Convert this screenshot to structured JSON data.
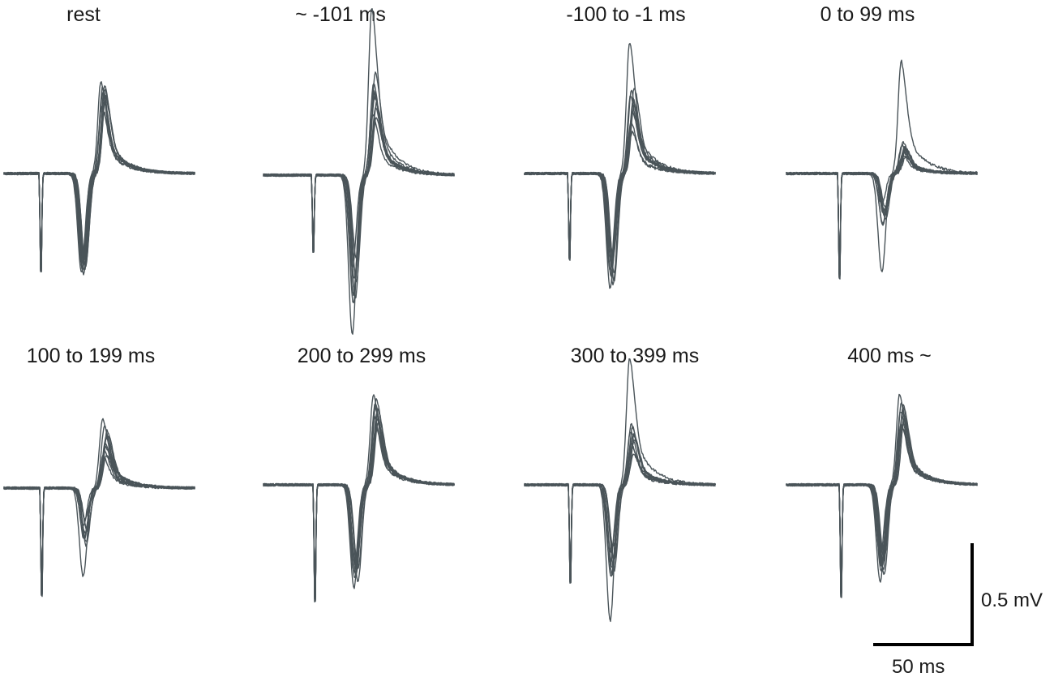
{
  "chart_data": {
    "type": "line",
    "description_units": {
      "x": "ms",
      "y": "mV"
    },
    "trace_color": "#4a5459",
    "scale_bars": {
      "voltage_label": "0.5 mV",
      "voltage_value_mV": 0.5,
      "time_label": "50 ms",
      "time_value_ms": 50
    },
    "panels": [
      {
        "title": "rest",
        "traces": 10,
        "stim_amp_mV": -0.55,
        "response": {
          "neg_peak_mV": [
            -0.44,
            -0.47,
            -0.49,
            -0.42,
            -0.45,
            -0.48,
            -0.46,
            -0.43,
            -0.47,
            -0.45
          ],
          "pos_peak_mV": [
            0.45,
            0.4,
            0.43,
            0.35,
            0.38,
            0.42,
            0.33,
            0.3,
            0.37,
            0.41
          ]
        }
      },
      {
        "title": "~  -101 ms",
        "traces": 10,
        "stim_amp_mV": -0.43,
        "response": {
          "neg_peak_mV": [
            -0.77,
            -0.62,
            -0.55,
            -0.48,
            -0.52,
            -0.45,
            -0.58,
            -0.5,
            -0.6,
            -0.4
          ],
          "pos_peak_mV": [
            0.82,
            0.45,
            0.5,
            0.38,
            0.35,
            0.42,
            0.3,
            0.4,
            0.28,
            0.33
          ]
        }
      },
      {
        "title": "-100  to  -1 ms",
        "traces": 10,
        "stim_amp_mV": -0.48,
        "response": {
          "neg_peak_mV": [
            -0.56,
            -0.5,
            -0.45,
            -0.4,
            -0.52,
            -0.47,
            -0.43,
            -0.38,
            -0.54,
            -0.48
          ],
          "pos_peak_mV": [
            0.64,
            0.4,
            0.35,
            0.3,
            0.42,
            0.25,
            0.38,
            0.2,
            0.33,
            0.36
          ]
        }
      },
      {
        "title": "0  to  99 ms",
        "traces": 10,
        "stim_amp_mV": -0.58,
        "response": {
          "neg_peak_mV": [
            -0.48,
            -0.25,
            -0.2,
            -0.18,
            -0.22,
            -0.15,
            -0.24,
            -0.19,
            -0.21,
            -0.17
          ],
          "pos_peak_mV": [
            0.55,
            0.15,
            0.13,
            0.1,
            0.12,
            0.09,
            0.14,
            0.11,
            0.08,
            0.12
          ]
        }
      },
      {
        "title": "100  to  199 ms",
        "traces": 10,
        "stim_amp_mV": -0.6,
        "response": {
          "neg_peak_mV": [
            -0.43,
            -0.25,
            -0.22,
            -0.28,
            -0.2,
            -0.18,
            -0.24,
            -0.15,
            -0.26,
            -0.21
          ],
          "pos_peak_mV": [
            0.34,
            0.3,
            0.25,
            0.2,
            0.28,
            0.18,
            0.15,
            0.22,
            0.26,
            0.16
          ]
        }
      },
      {
        "title": "200  to  299 ms",
        "traces": 10,
        "stim_amp_mV": -0.65,
        "response": {
          "neg_peak_mV": [
            -0.5,
            -0.45,
            -0.4,
            -0.35,
            -0.47,
            -0.42,
            -0.38,
            -0.44,
            -0.36,
            -0.41
          ],
          "pos_peak_mV": [
            0.44,
            0.4,
            0.35,
            0.42,
            0.3,
            0.38,
            0.33,
            0.28,
            0.37,
            0.32
          ]
        }
      },
      {
        "title": "300  to  399 ms",
        "traces": 10,
        "stim_amp_mV": -0.55,
        "response": {
          "neg_peak_mV": [
            -0.66,
            -0.45,
            -0.4,
            -0.35,
            -0.42,
            -0.38,
            -0.33,
            -0.44,
            -0.3,
            -0.37
          ],
          "pos_peak_mV": [
            0.62,
            0.3,
            0.25,
            0.28,
            0.22,
            0.2,
            0.26,
            0.18,
            0.24,
            0.15
          ]
        }
      },
      {
        "title": "400 ms ~",
        "traces": 10,
        "stim_amp_mV": -0.62,
        "response": {
          "neg_peak_mV": [
            -0.47,
            -0.42,
            -0.4,
            -0.37,
            -0.44,
            -0.35,
            -0.39,
            -0.32,
            -0.41,
            -0.36
          ],
          "pos_peak_mV": [
            0.44,
            0.4,
            0.38,
            0.35,
            0.33,
            0.3,
            0.36,
            0.28,
            0.32,
            0.39
          ]
        }
      }
    ]
  }
}
